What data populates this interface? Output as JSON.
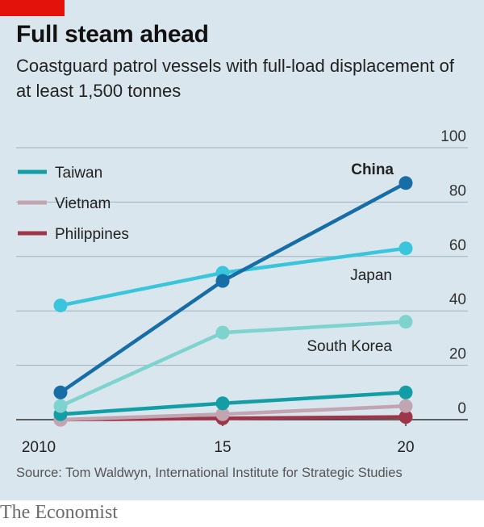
{
  "header": {
    "title": "Full steam ahead",
    "subtitle": "Coastguard patrol vessels with full-load displacement of at least 1,500 tonnes"
  },
  "footer": {
    "source": "Source: Tom Waldwyn, International Institute for Strategic Studies",
    "brand": "The Economist"
  },
  "colors": {
    "background": "#d9e6ed",
    "accent_red": "#e3120b"
  },
  "chart_data": {
    "type": "line",
    "x": [
      2010,
      2015,
      2020
    ],
    "x_tick_labels": [
      "2010",
      "15",
      "20"
    ],
    "ylim": [
      0,
      100
    ],
    "y_ticks": [
      0,
      20,
      40,
      60,
      80,
      100
    ],
    "y_axis_side": "right",
    "grid": true,
    "legend_placement": "top-left",
    "series": [
      {
        "name": "Japan",
        "label_in_legend": false,
        "values": [
          42,
          54,
          63
        ],
        "color": "#39c5dc"
      },
      {
        "name": "South Korea",
        "label_in_legend": false,
        "values": [
          5,
          32,
          36
        ],
        "color": "#7ed3cf"
      },
      {
        "name": "China",
        "label_in_legend": false,
        "bold_label": true,
        "values": [
          10,
          51,
          87
        ],
        "color": "#176ea6"
      },
      {
        "name": "Taiwan",
        "label_in_legend": true,
        "values": [
          2,
          6,
          10
        ],
        "color": "#139ea5"
      },
      {
        "name": "Vietnam",
        "label_in_legend": true,
        "values": [
          0,
          2,
          5
        ],
        "color": "#c2a5b0"
      },
      {
        "name": "Philippines",
        "label_in_legend": true,
        "values": [
          0,
          0.5,
          1
        ],
        "color": "#9e3548"
      }
    ]
  }
}
